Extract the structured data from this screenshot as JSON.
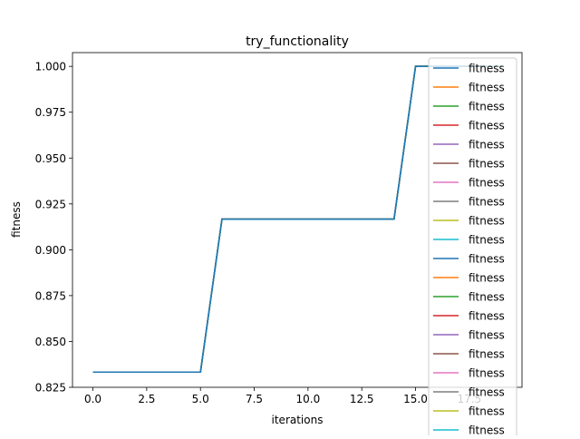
{
  "chart_data": {
    "type": "line",
    "title": "try_functionality",
    "xlabel": "iterations",
    "ylabel": "fitness",
    "xlim": [
      -0.95,
      19.95
    ],
    "ylim": [
      0.825,
      1.0075
    ],
    "xticks": [
      0.0,
      2.5,
      5.0,
      7.5,
      10.0,
      12.5,
      15.0,
      17.5
    ],
    "xtick_labels": [
      "0.0",
      "2.5",
      "5.0",
      "7.5",
      "10.0",
      "12.5",
      "15.0",
      "17.5"
    ],
    "yticks": [
      0.825,
      0.85,
      0.875,
      0.9,
      0.925,
      0.95,
      0.975,
      1.0
    ],
    "ytick_labels": [
      "0.825",
      "0.850",
      "0.875",
      "0.900",
      "0.925",
      "0.950",
      "0.975",
      "1.000"
    ],
    "grid": false,
    "legend_position": "right",
    "x": [
      0,
      1,
      2,
      3,
      4,
      5,
      6,
      7,
      8,
      9,
      10,
      11,
      12,
      13,
      14,
      15,
      16,
      17,
      18,
      19
    ],
    "series_values": [
      0.8333,
      0.8333,
      0.8333,
      0.8333,
      0.8333,
      0.8333,
      0.9167,
      0.9167,
      0.9167,
      0.9167,
      0.9167,
      0.9167,
      0.9167,
      0.9167,
      0.9167,
      1.0,
      1.0,
      1.0,
      1.0,
      1.0
    ],
    "legend_entries": [
      {
        "name": "fitness",
        "color": "#1f77b4"
      },
      {
        "name": "fitness",
        "color": "#ff7f0e"
      },
      {
        "name": "fitness",
        "color": "#2ca02c"
      },
      {
        "name": "fitness",
        "color": "#d62728"
      },
      {
        "name": "fitness",
        "color": "#9467bd"
      },
      {
        "name": "fitness",
        "color": "#8c564b"
      },
      {
        "name": "fitness",
        "color": "#e377c2"
      },
      {
        "name": "fitness",
        "color": "#7f7f7f"
      },
      {
        "name": "fitness",
        "color": "#bcbd22"
      },
      {
        "name": "fitness",
        "color": "#17becf"
      },
      {
        "name": "fitness",
        "color": "#1f77b4"
      },
      {
        "name": "fitness",
        "color": "#ff7f0e"
      },
      {
        "name": "fitness",
        "color": "#2ca02c"
      },
      {
        "name": "fitness",
        "color": "#d62728"
      },
      {
        "name": "fitness",
        "color": "#9467bd"
      },
      {
        "name": "fitness",
        "color": "#8c564b"
      },
      {
        "name": "fitness",
        "color": "#e377c2"
      },
      {
        "name": "fitness",
        "color": "#7f7f7f"
      },
      {
        "name": "fitness",
        "color": "#bcbd22"
      },
      {
        "name": "fitness",
        "color": "#17becf"
      }
    ],
    "top_line_color": "#1f77b4"
  }
}
